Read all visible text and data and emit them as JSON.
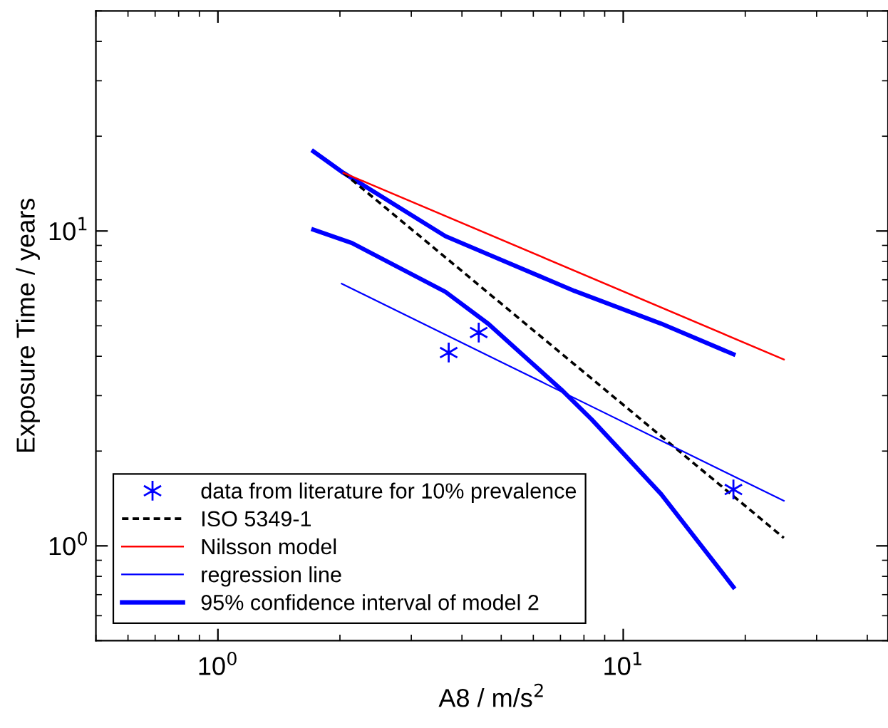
{
  "chart_data": {
    "type": "line",
    "xlabel": "A8 / m/s$^{2}$",
    "ylabel": "Exposure Time / years",
    "log": "xy",
    "xlim": [
      0.5,
      45
    ],
    "ylim": [
      0.5,
      50
    ],
    "xticks": [
      {
        "value": 1,
        "label": "10$^{0}$"
      },
      {
        "value": 10,
        "label": "10$^{1}$"
      }
    ],
    "yticks": [
      {
        "value": 1,
        "label": "10$^{0}$"
      },
      {
        "value": 10,
        "label": "10$^{1}$"
      }
    ],
    "grid": false,
    "legend": "bottom left",
    "series": [
      {
        "name": "data from literature for 10% prevalence",
        "type": "scatter",
        "marker": "cross",
        "color": "#0000ff",
        "x": [
          3.71,
          4.4,
          18.7
        ],
        "values": [
          4.11,
          4.76,
          1.51
        ]
      },
      {
        "name": "ISO 5349-1",
        "line_style": "dashed",
        "color": "#000000",
        "x": [
          2.04,
          24.9
        ],
        "values": [
          15.3,
          1.06
        ]
      },
      {
        "name": "Nilsson model",
        "line_style": "solid",
        "color": "#ff0000",
        "x": [
          2.04,
          24.9
        ],
        "values": [
          15.3,
          3.91
        ]
      },
      {
        "name": "regression line",
        "line_style": "solid",
        "color": "#0000ff",
        "x": [
          2.02,
          24.9
        ],
        "values": [
          6.8,
          1.39
        ]
      },
      {
        "name": "95% confidence interval of model 2",
        "line_style": "solid",
        "color": "#0000ff",
        "x": [
          1.72,
          2.04,
          3.64,
          4.65,
          7.58,
          12.4,
          18.7
        ],
        "values": [
          17.9,
          15.3,
          9.63,
          8.42,
          6.45,
          5.08,
          4.06
        ]
      },
      {
        "line_style": "solid",
        "color": "#0000ff",
        "x": [
          1.72,
          2.14,
          3.64,
          4.65,
          7.1,
          8.36,
          12.4,
          18.7
        ],
        "values": [
          10.1,
          9.16,
          6.41,
          5.07,
          3.1,
          2.52,
          1.46,
          0.74
        ]
      }
    ]
  }
}
